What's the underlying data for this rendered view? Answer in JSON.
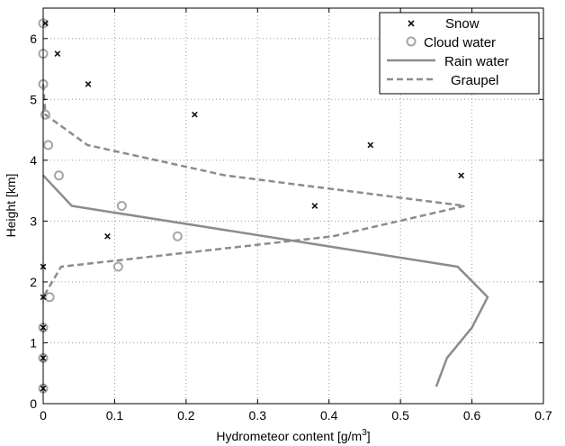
{
  "chart_data": {
    "type": "scatter",
    "xlabel": "Hydrometeor content [g/m",
    "xlabel_superscript": "3",
    "xlabel_suffix": "]",
    "ylabel": "Height [km]",
    "xlim": [
      0,
      0.7
    ],
    "ylim": [
      0,
      6.5
    ],
    "x_ticks": [
      "0",
      "0.1",
      "0.2",
      "0.3",
      "0.4",
      "0.5",
      "0.6",
      "0.7"
    ],
    "y_ticks": [
      "0",
      "1",
      "2",
      "3",
      "4",
      "5",
      "6"
    ],
    "grid": true,
    "legend_position": "top-right",
    "series": [
      {
        "name": "Snow",
        "style": "x-marker",
        "color": "#111111",
        "points": [
          [
            0.003,
            6.25
          ],
          [
            0.02,
            5.75
          ],
          [
            0.063,
            5.25
          ],
          [
            0.212,
            4.75
          ],
          [
            0.458,
            4.25
          ],
          [
            0.585,
            3.75
          ],
          [
            0.38,
            3.25
          ],
          [
            0.09,
            2.75
          ],
          [
            0.0,
            2.25
          ],
          [
            0.0,
            1.75
          ],
          [
            0.0,
            1.25
          ],
          [
            0.0,
            0.75
          ],
          [
            0.0,
            0.25
          ]
        ]
      },
      {
        "name": "Cloud water",
        "style": "circle-marker",
        "color": "#a6a6a6",
        "points": [
          [
            0.0,
            6.25
          ],
          [
            0.0,
            5.75
          ],
          [
            0.0,
            5.25
          ],
          [
            0.003,
            4.75
          ],
          [
            0.007,
            4.25
          ],
          [
            0.022,
            3.75
          ],
          [
            0.11,
            3.25
          ],
          [
            0.188,
            2.75
          ],
          [
            0.105,
            2.25
          ],
          [
            0.009,
            1.75
          ],
          [
            0.0,
            1.25
          ],
          [
            0.0,
            0.75
          ],
          [
            0.0,
            0.25
          ]
        ]
      },
      {
        "name": "Rain water",
        "style": "solid-line",
        "color": "#8c8c8c",
        "points": [
          [
            0.0,
            3.75
          ],
          [
            0.04,
            3.25
          ],
          [
            0.58,
            2.25
          ],
          [
            0.622,
            1.75
          ],
          [
            0.6,
            1.25
          ],
          [
            0.565,
            0.75
          ],
          [
            0.55,
            0.28
          ]
        ]
      },
      {
        "name": "Graupel",
        "style": "dashed-line",
        "color": "#8c8c8c",
        "points": [
          [
            0.0,
            5.25
          ],
          [
            0.003,
            4.75
          ],
          [
            0.062,
            4.25
          ],
          [
            0.255,
            3.75
          ],
          [
            0.59,
            3.25
          ],
          [
            0.405,
            2.75
          ],
          [
            0.025,
            2.25
          ],
          [
            0.0,
            1.75
          ]
        ]
      }
    ]
  }
}
